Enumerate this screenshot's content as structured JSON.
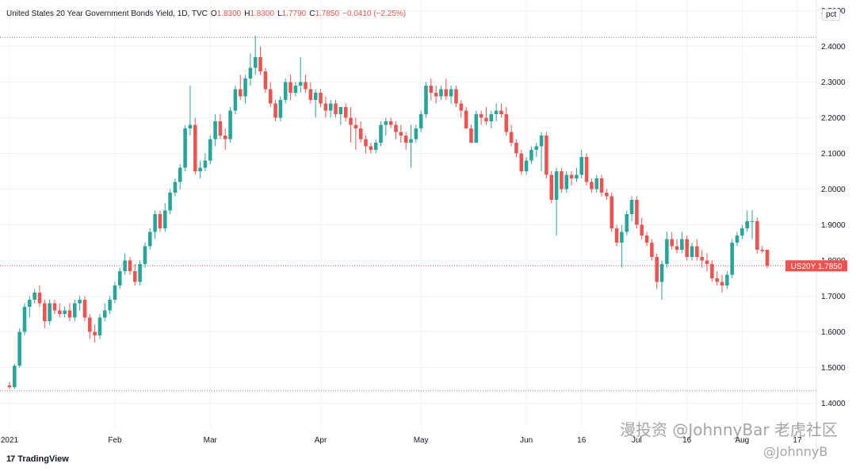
{
  "header": {
    "title": "United States 20 Year Government Bonds Yield, 1D, TVC",
    "o_label": "O",
    "o_value": "1.8300",
    "h_label": "H",
    "h_value": "1.8300",
    "l_label": "L",
    "l_value": "1.7790",
    "c_label": "C",
    "c_value": "1.7850",
    "change": "−0.0410 (−2.25%)"
  },
  "unit": "pct",
  "price_tag": {
    "symbol": "US20Y",
    "value": "1.7850"
  },
  "branding": {
    "logo_mark": "17",
    "name": "TradingView"
  },
  "watermark": {
    "line1": "漫投资 @JohnnyBar 老虎社区",
    "line2": "@JohnnyB"
  },
  "colors": {
    "up": "#26a69a",
    "down": "#ef5350",
    "grid": "#f0f3fa",
    "axis_text": "#131722"
  },
  "chart_data": {
    "type": "candlestick",
    "title": "United States 20 Year Government Bonds Yield, 1D, TVC",
    "y_ticks": [
      "1.4000",
      "1.5000",
      "1.6000",
      "1.7000",
      "1.8000",
      "1.9000",
      "2.0000",
      "2.1000",
      "2.2000",
      "2.3000",
      "2.4000",
      "2.5000"
    ],
    "ylim": [
      1.33,
      2.53
    ],
    "x_ticks": [
      {
        "label": "2021",
        "index": 0
      },
      {
        "label": "Feb",
        "index": 21
      },
      {
        "label": "Mar",
        "index": 40
      },
      {
        "label": "Apr",
        "index": 62
      },
      {
        "label": "May",
        "index": 82
      },
      {
        "label": "Jun",
        "index": 103
      },
      {
        "label": "16",
        "index": 114
      },
      {
        "label": "Jul",
        "index": 125
      },
      {
        "label": "16",
        "index": 135
      },
      {
        "label": "Aug",
        "index": 146
      },
      {
        "label": "17",
        "index": 157
      }
    ],
    "reference_lines": [
      2.425,
      1.435
    ],
    "last_value": 1.785,
    "grid": true,
    "candles": [
      [
        1.45,
        1.46,
        1.44,
        1.445
      ],
      [
        1.445,
        1.51,
        1.44,
        1.505
      ],
      [
        1.505,
        1.61,
        1.5,
        1.6
      ],
      [
        1.6,
        1.68,
        1.59,
        1.67
      ],
      [
        1.67,
        1.7,
        1.64,
        1.69
      ],
      [
        1.69,
        1.72,
        1.68,
        1.71
      ],
      [
        1.71,
        1.73,
        1.67,
        1.68
      ],
      [
        1.68,
        1.69,
        1.61,
        1.63
      ],
      [
        1.63,
        1.69,
        1.62,
        1.68
      ],
      [
        1.68,
        1.69,
        1.65,
        1.66
      ],
      [
        1.66,
        1.68,
        1.64,
        1.65
      ],
      [
        1.65,
        1.67,
        1.64,
        1.66
      ],
      [
        1.66,
        1.68,
        1.63,
        1.64
      ],
      [
        1.64,
        1.69,
        1.63,
        1.68
      ],
      [
        1.68,
        1.7,
        1.66,
        1.69
      ],
      [
        1.69,
        1.7,
        1.63,
        1.64
      ],
      [
        1.64,
        1.65,
        1.58,
        1.6
      ],
      [
        1.6,
        1.62,
        1.57,
        1.59
      ],
      [
        1.59,
        1.65,
        1.58,
        1.64
      ],
      [
        1.64,
        1.68,
        1.63,
        1.66
      ],
      [
        1.66,
        1.7,
        1.65,
        1.69
      ],
      [
        1.69,
        1.74,
        1.68,
        1.73
      ],
      [
        1.73,
        1.78,
        1.72,
        1.77
      ],
      [
        1.77,
        1.82,
        1.76,
        1.8
      ],
      [
        1.8,
        1.81,
        1.76,
        1.77
      ],
      [
        1.77,
        1.79,
        1.73,
        1.74
      ],
      [
        1.74,
        1.8,
        1.73,
        1.79
      ],
      [
        1.79,
        1.85,
        1.78,
        1.84
      ],
      [
        1.84,
        1.89,
        1.83,
        1.88
      ],
      [
        1.88,
        1.94,
        1.86,
        1.93
      ],
      [
        1.93,
        1.94,
        1.88,
        1.89
      ],
      [
        1.89,
        1.96,
        1.88,
        1.94
      ],
      [
        1.94,
        2.0,
        1.93,
        1.99
      ],
      [
        1.99,
        2.03,
        1.98,
        2.02
      ],
      [
        2.02,
        2.07,
        2.0,
        2.06
      ],
      [
        2.06,
        2.18,
        2.05,
        2.17
      ],
      [
        2.17,
        2.29,
        2.15,
        2.18
      ],
      [
        2.18,
        2.2,
        2.04,
        2.05
      ],
      [
        2.05,
        2.08,
        2.03,
        2.06
      ],
      [
        2.06,
        2.1,
        2.05,
        2.08
      ],
      [
        2.08,
        2.15,
        2.07,
        2.14
      ],
      [
        2.14,
        2.21,
        2.12,
        2.19
      ],
      [
        2.19,
        2.21,
        2.14,
        2.15
      ],
      [
        2.15,
        2.17,
        2.11,
        2.14
      ],
      [
        2.14,
        2.23,
        2.13,
        2.22
      ],
      [
        2.22,
        2.29,
        2.21,
        2.28
      ],
      [
        2.28,
        2.32,
        2.25,
        2.26
      ],
      [
        2.26,
        2.32,
        2.24,
        2.31
      ],
      [
        2.31,
        2.38,
        2.29,
        2.34
      ],
      [
        2.34,
        2.43,
        2.32,
        2.37
      ],
      [
        2.37,
        2.4,
        2.32,
        2.33
      ],
      [
        2.33,
        2.34,
        2.27,
        2.28
      ],
      [
        2.28,
        2.3,
        2.23,
        2.24
      ],
      [
        2.24,
        2.25,
        2.19,
        2.2
      ],
      [
        2.2,
        2.26,
        2.19,
        2.25
      ],
      [
        2.25,
        2.31,
        2.24,
        2.3
      ],
      [
        2.3,
        2.32,
        2.25,
        2.27
      ],
      [
        2.27,
        2.3,
        2.26,
        2.29
      ],
      [
        2.29,
        2.37,
        2.27,
        2.3
      ],
      [
        2.3,
        2.32,
        2.27,
        2.28
      ],
      [
        2.28,
        2.3,
        2.24,
        2.25
      ],
      [
        2.25,
        2.28,
        2.2,
        2.27
      ],
      [
        2.27,
        2.28,
        2.23,
        2.24
      ],
      [
        2.24,
        2.26,
        2.2,
        2.22
      ],
      [
        2.22,
        2.25,
        2.2,
        2.24
      ],
      [
        2.24,
        2.25,
        2.2,
        2.21
      ],
      [
        2.21,
        2.23,
        2.18,
        2.23
      ],
      [
        2.23,
        2.24,
        2.19,
        2.2
      ],
      [
        2.2,
        2.23,
        2.13,
        2.18
      ],
      [
        2.18,
        2.2,
        2.11,
        2.17
      ],
      [
        2.17,
        2.19,
        2.13,
        2.14
      ],
      [
        2.14,
        2.15,
        2.1,
        2.12
      ],
      [
        2.12,
        2.13,
        2.1,
        2.11
      ],
      [
        2.11,
        2.14,
        2.1,
        2.13
      ],
      [
        2.13,
        2.19,
        2.12,
        2.18
      ],
      [
        2.18,
        2.2,
        2.15,
        2.19
      ],
      [
        2.19,
        2.2,
        2.17,
        2.18
      ],
      [
        2.18,
        2.19,
        2.14,
        2.16
      ],
      [
        2.16,
        2.18,
        2.13,
        2.15
      ],
      [
        2.15,
        2.16,
        2.11,
        2.13
      ],
      [
        2.13,
        2.18,
        2.06,
        2.14
      ],
      [
        2.14,
        2.18,
        2.13,
        2.17
      ],
      [
        2.17,
        2.22,
        2.16,
        2.21
      ],
      [
        2.21,
        2.3,
        2.2,
        2.29
      ],
      [
        2.29,
        2.31,
        2.25,
        2.27
      ],
      [
        2.27,
        2.29,
        2.24,
        2.26
      ],
      [
        2.26,
        2.29,
        2.25,
        2.28
      ],
      [
        2.28,
        2.31,
        2.25,
        2.26
      ],
      [
        2.26,
        2.29,
        2.24,
        2.28
      ],
      [
        2.28,
        2.29,
        2.23,
        2.24
      ],
      [
        2.24,
        2.25,
        2.2,
        2.22
      ],
      [
        2.22,
        2.23,
        2.17,
        2.17
      ],
      [
        2.17,
        2.18,
        2.13,
        2.13
      ],
      [
        2.13,
        2.22,
        2.13,
        2.21
      ],
      [
        2.21,
        2.22,
        2.18,
        2.2
      ],
      [
        2.2,
        2.23,
        2.18,
        2.19
      ],
      [
        2.19,
        2.22,
        2.17,
        2.21
      ],
      [
        2.21,
        2.24,
        2.19,
        2.22
      ],
      [
        2.22,
        2.24,
        2.2,
        2.21
      ],
      [
        2.21,
        2.23,
        2.15,
        2.16
      ],
      [
        2.16,
        2.18,
        2.12,
        2.13
      ],
      [
        2.13,
        2.14,
        2.09,
        2.1
      ],
      [
        2.1,
        2.11,
        2.04,
        2.05
      ],
      [
        2.05,
        2.09,
        2.04,
        2.08
      ],
      [
        2.08,
        2.12,
        2.07,
        2.11
      ],
      [
        2.11,
        2.13,
        2.09,
        2.12
      ],
      [
        2.12,
        2.16,
        2.05,
        2.15
      ],
      [
        2.15,
        2.16,
        2.03,
        2.04
      ],
      [
        2.04,
        2.05,
        1.96,
        1.97
      ],
      [
        1.97,
        2.06,
        1.87,
        2.05
      ],
      [
        2.05,
        2.06,
        1.99,
        2.0
      ],
      [
        2.0,
        2.05,
        1.99,
        2.04
      ],
      [
        2.04,
        2.05,
        2.01,
        2.03
      ],
      [
        2.03,
        2.06,
        2.02,
        2.04
      ],
      [
        2.04,
        2.11,
        2.03,
        2.09
      ],
      [
        2.09,
        2.1,
        2.01,
        2.02
      ],
      [
        2.02,
        2.03,
        1.99,
        2.0
      ],
      [
        2.0,
        2.04,
        1.99,
        2.03
      ],
      [
        2.03,
        2.04,
        1.98,
        1.99
      ],
      [
        1.99,
        2.0,
        1.97,
        1.98
      ],
      [
        1.98,
        1.99,
        1.88,
        1.89
      ],
      [
        1.89,
        1.9,
        1.84,
        1.85
      ],
      [
        1.85,
        1.9,
        1.78,
        1.88
      ],
      [
        1.88,
        1.94,
        1.87,
        1.93
      ],
      [
        1.93,
        1.98,
        1.91,
        1.97
      ],
      [
        1.97,
        1.98,
        1.89,
        1.9
      ],
      [
        1.9,
        1.92,
        1.86,
        1.87
      ],
      [
        1.87,
        1.88,
        1.84,
        1.85
      ],
      [
        1.85,
        1.86,
        1.8,
        1.81
      ],
      [
        1.81,
        1.82,
        1.72,
        1.74
      ],
      [
        1.74,
        1.8,
        1.69,
        1.79
      ],
      [
        1.79,
        1.88,
        1.78,
        1.86
      ],
      [
        1.86,
        1.88,
        1.83,
        1.84
      ],
      [
        1.84,
        1.86,
        1.82,
        1.83
      ],
      [
        1.83,
        1.88,
        1.82,
        1.86
      ],
      [
        1.86,
        1.87,
        1.8,
        1.81
      ],
      [
        1.81,
        1.85,
        1.8,
        1.84
      ],
      [
        1.84,
        1.86,
        1.8,
        1.81
      ],
      [
        1.81,
        1.83,
        1.78,
        1.8
      ],
      [
        1.8,
        1.82,
        1.77,
        1.79
      ],
      [
        1.79,
        1.8,
        1.74,
        1.75
      ],
      [
        1.75,
        1.77,
        1.73,
        1.74
      ],
      [
        1.74,
        1.76,
        1.71,
        1.73
      ],
      [
        1.73,
        1.77,
        1.72,
        1.76
      ],
      [
        1.76,
        1.86,
        1.75,
        1.85
      ],
      [
        1.85,
        1.88,
        1.84,
        1.87
      ],
      [
        1.87,
        1.9,
        1.86,
        1.89
      ],
      [
        1.89,
        1.94,
        1.88,
        1.91
      ],
      [
        1.91,
        1.94,
        1.86,
        1.91
      ],
      [
        1.91,
        1.92,
        1.82,
        1.83
      ],
      [
        1.83,
        1.84,
        1.82,
        1.826
      ],
      [
        1.83,
        1.83,
        1.779,
        1.785
      ]
    ]
  }
}
